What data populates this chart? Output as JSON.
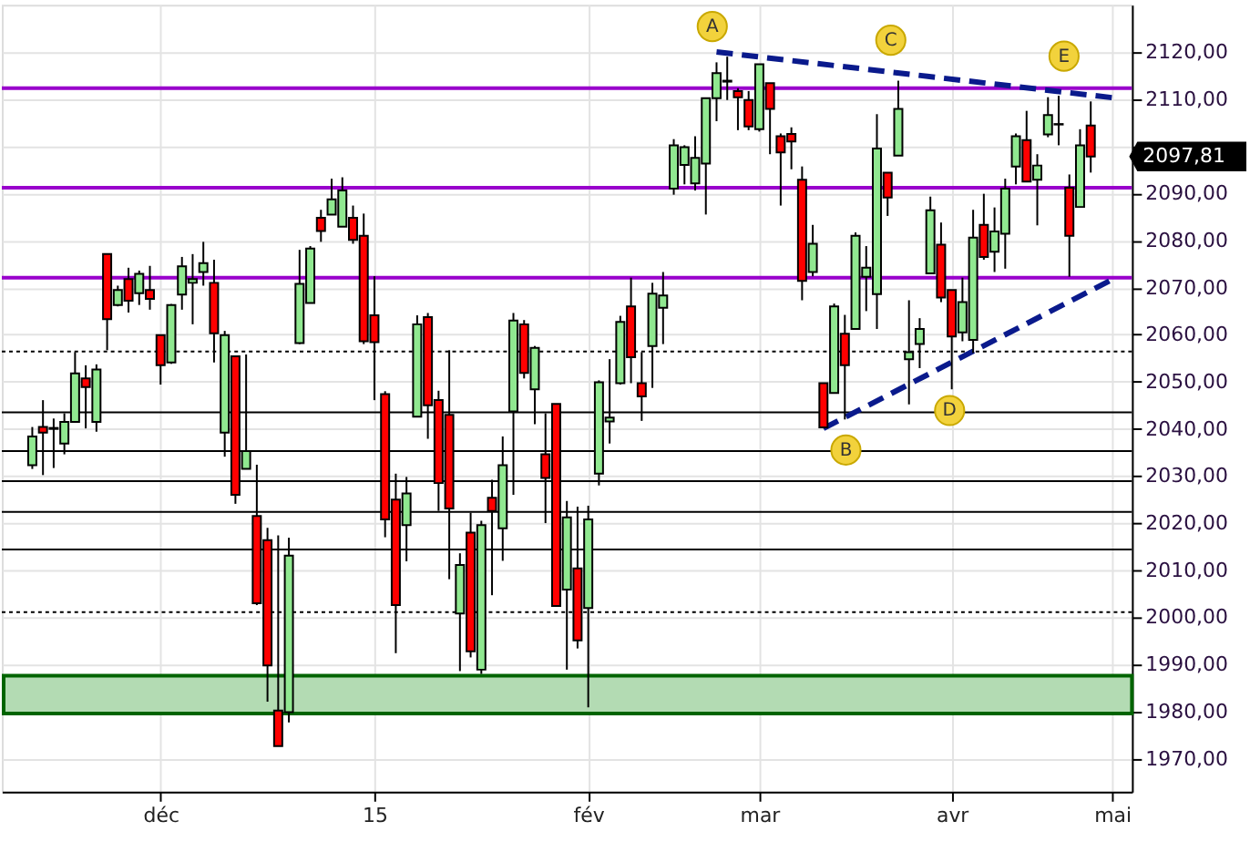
{
  "chart_data": {
    "type": "candlestick",
    "categories": [
      null,
      null,
      null,
      null,
      null,
      null,
      null,
      null,
      null,
      null,
      null,
      null,
      "déc",
      null,
      null,
      null,
      null,
      null,
      null,
      null,
      null,
      null,
      null,
      null,
      null,
      null,
      null,
      null,
      null,
      null,
      null,
      null,
      "15",
      null,
      null,
      null,
      null,
      null,
      null,
      null,
      null,
      null,
      null,
      null,
      null,
      null,
      null,
      null,
      null,
      null,
      null,
      null,
      "fév",
      null,
      null,
      null,
      null,
      null,
      null,
      null,
      null,
      null,
      null,
      null,
      null,
      null,
      null,
      null,
      "mar",
      null,
      null,
      null,
      null,
      null,
      null,
      null,
      null,
      null,
      null,
      null,
      null,
      null,
      null,
      null,
      null,
      null,
      "avr",
      null,
      null,
      null,
      null,
      null,
      null,
      null,
      null,
      null,
      null,
      null,
      null,
      null,
      null,
      "mai"
    ],
    "ohlc": [
      [
        2032.3,
        2040.4,
        2031.5,
        2038.4
      ],
      [
        2040.4,
        2046.1,
        2030.2,
        2039.2
      ],
      [
        2040.2,
        2042.2,
        2031.7,
        2040.0
      ],
      [
        2036.9,
        2043.3,
        2034.6,
        2041.5
      ],
      [
        2041.5,
        2056.3,
        2041.5,
        2051.8
      ],
      [
        2050.7,
        2053.5,
        2040.1,
        2048.9
      ],
      [
        2041.5,
        2053.7,
        2039.4,
        2052.6
      ],
      [
        2077.1,
        2077.1,
        2056.7,
        2063.3
      ],
      [
        2066.3,
        2070.4,
        2066.0,
        2069.5
      ],
      [
        2071.8,
        2074.2,
        2064.7,
        2067.2
      ],
      [
        2068.8,
        2073.6,
        2066.3,
        2072.9
      ],
      [
        2069.5,
        2074.6,
        2065.3,
        2067.6
      ],
      [
        2059.9,
        2059.9,
        2049.4,
        2053.5
      ],
      [
        2054.1,
        2066.5,
        2053.8,
        2066.3
      ],
      [
        2068.5,
        2076.5,
        2065.3,
        2074.5
      ],
      [
        2071.0,
        2077.1,
        2062.2,
        2071.8
      ],
      [
        2073.3,
        2079.7,
        2070.4,
        2075.2
      ],
      [
        2071.0,
        2075.9,
        2054.1,
        2060.3
      ],
      [
        2039.2,
        2060.8,
        2034.1,
        2059.9
      ],
      [
        2055.4,
        2055.4,
        2024.1,
        2026.0
      ],
      [
        2031.5,
        2055.8,
        2031.5,
        2035.3
      ],
      [
        2021.5,
        2032.4,
        2002.6,
        2003.0
      ],
      [
        2016.4,
        2019.0,
        1982.1,
        1989.8
      ],
      [
        1980.2,
        2017.4,
        1972.7,
        1972.7
      ],
      [
        1979.9,
        2016.9,
        1977.7,
        2013.1
      ],
      [
        2058.2,
        2078.0,
        2058.0,
        2070.8
      ],
      [
        2066.7,
        2078.8,
        2066.7,
        2078.3
      ],
      [
        2084.8,
        2086.5,
        2079.7,
        2082.0
      ],
      [
        2085.5,
        2093.1,
        2085.5,
        2088.7
      ],
      [
        2082.9,
        2093.4,
        2082.9,
        2090.6
      ],
      [
        2084.8,
        2087.4,
        2079.3,
        2080.1
      ],
      [
        2081.0,
        2085.7,
        2058.0,
        2058.6
      ],
      [
        2064.1,
        2072.4,
        2046.1,
        2058.4
      ],
      [
        2047.4,
        2048.0,
        2017.0,
        2020.8
      ],
      [
        2025.0,
        2030.5,
        1992.4,
        2002.6
      ],
      [
        2019.6,
        2029.8,
        2011.9,
        2026.3
      ],
      [
        2042.6,
        2064.1,
        2042.6,
        2062.2
      ],
      [
        2063.7,
        2064.6,
        2037.9,
        2045.0
      ],
      [
        2046.1,
        2048.1,
        2022.6,
        2028.5
      ],
      [
        2043.0,
        2056.7,
        2008.1,
        2023.1
      ],
      [
        2000.8,
        2013.6,
        1988.6,
        2011.1
      ],
      [
        2018.0,
        2022.2,
        1991.5,
        1992.8
      ],
      [
        1988.9,
        2020.5,
        1988.0,
        2019.6
      ],
      [
        2025.4,
        2029.2,
        2004.7,
        2022.6
      ],
      [
        2018.9,
        2038.4,
        2012.0,
        2032.3
      ],
      [
        2043.7,
        2064.6,
        2026.0,
        2063.0
      ],
      [
        2062.2,
        2063.1,
        2050.7,
        2051.9
      ],
      [
        2048.4,
        2057.6,
        2041.0,
        2057.2
      ],
      [
        2034.6,
        2043.3,
        2020.0,
        2029.6
      ],
      [
        2045.3,
        2045.3,
        2002.4,
        2002.4
      ],
      [
        2005.9,
        2024.7,
        1988.9,
        2021.2
      ],
      [
        2010.4,
        2023.5,
        1993.4,
        1995.1
      ],
      [
        2002.0,
        2023.7,
        1980.9,
        2020.8
      ],
      [
        2030.5,
        2050.3,
        2028.0,
        2049.9
      ],
      [
        2041.6,
        2054.8,
        2036.9,
        2042.4
      ],
      [
        2049.7,
        2064.0,
        2049.4,
        2062.7
      ],
      [
        2066.0,
        2072.1,
        2049.7,
        2055.2
      ],
      [
        2049.7,
        2056.3,
        2041.7,
        2046.9
      ],
      [
        2057.6,
        2071.0,
        2048.7,
        2068.7
      ],
      [
        2065.7,
        2073.3,
        2058.0,
        2068.3
      ],
      [
        2091.0,
        2101.5,
        2089.7,
        2100.2
      ],
      [
        2096.0,
        2100.2,
        2091.9,
        2099.8
      ],
      [
        2092.1,
        2102.1,
        2090.6,
        2097.5
      ],
      [
        2096.3,
        2110.2,
        2085.5,
        2110.2
      ],
      [
        2110.2,
        2117.8,
        2105.3,
        2115.5
      ],
      [
        2113.9,
        2119.0,
        2109.8,
        2113.7
      ],
      [
        2111.7,
        2112.3,
        2103.4,
        2110.4
      ],
      [
        2109.8,
        2111.7,
        2103.4,
        2104.2
      ],
      [
        2103.6,
        2117.4,
        2103.1,
        2117.4
      ],
      [
        2113.4,
        2113.4,
        2098.3,
        2107.9
      ],
      [
        2102.1,
        2102.7,
        2087.4,
        2098.7
      ],
      [
        2102.6,
        2104.0,
        2095.1,
        2101.0
      ],
      [
        2092.9,
        2095.7,
        2067.3,
        2071.4
      ],
      [
        2073.3,
        2083.3,
        2072.4,
        2079.3
      ],
      [
        2049.7,
        2049.7,
        2040.1,
        2040.3
      ],
      [
        2047.6,
        2066.6,
        2047.6,
        2066.0
      ],
      [
        2060.2,
        2064.2,
        2042.0,
        2053.5
      ],
      [
        2061.2,
        2081.7,
        2061.2,
        2081.0
      ],
      [
        2072.3,
        2078.8,
        2065.0,
        2074.2
      ],
      [
        2068.6,
        2106.8,
        2061.2,
        2099.5
      ],
      [
        2094.4,
        2094.4,
        2085.2,
        2089.1
      ],
      [
        2098.0,
        2113.9,
        2098.0,
        2107.9
      ],
      [
        2054.8,
        2067.3,
        2045.2,
        2056.3
      ],
      [
        2058.0,
        2063.5,
        2052.9,
        2061.2
      ],
      [
        2073.0,
        2089.3,
        2073.0,
        2086.4
      ],
      [
        2079.1,
        2083.8,
        2066.9,
        2067.9
      ],
      [
        2069.5,
        2069.5,
        2048.4,
        2059.6
      ],
      [
        2060.5,
        2072.1,
        2058.6,
        2066.9
      ],
      [
        2058.9,
        2086.5,
        2056.1,
        2080.6
      ],
      [
        2083.3,
        2089.9,
        2075.9,
        2076.5
      ],
      [
        2077.6,
        2087.0,
        2073.3,
        2081.9
      ],
      [
        2081.4,
        2093.1,
        2074.0,
        2091.0
      ],
      [
        2095.7,
        2102.7,
        2091.9,
        2102.1
      ],
      [
        2101.3,
        2107.5,
        2092.5,
        2092.5
      ],
      [
        2092.9,
        2098.3,
        2083.2,
        2095.9
      ],
      [
        2102.5,
        2110.4,
        2101.9,
        2106.6
      ],
      [
        2104.7,
        2110.7,
        2100.2,
        2104.6
      ],
      [
        2091.2,
        2094.0,
        2072.3,
        2081.0
      ],
      [
        2087.1,
        2103.6,
        2087.1,
        2100.2
      ],
      [
        2104.4,
        2109.5,
        2094.4,
        2097.81
      ],
      null,
      null
    ],
    "series": [
      {
        "type": "line",
        "color": "#0a1a8c",
        "line_style": "dashed",
        "values": [
          null,
          null,
          null,
          null,
          null,
          null,
          null,
          null,
          null,
          null,
          null,
          null,
          null,
          null,
          null,
          null,
          null,
          null,
          null,
          null,
          null,
          null,
          null,
          null,
          null,
          null,
          null,
          null,
          null,
          null,
          null,
          null,
          null,
          null,
          null,
          null,
          null,
          null,
          null,
          null,
          null,
          null,
          null,
          null,
          null,
          null,
          null,
          null,
          null,
          null,
          null,
          null,
          null,
          null,
          null,
          null,
          null,
          null,
          null,
          null,
          null,
          null,
          null,
          null,
          2120,
          null,
          null,
          null,
          null,
          null,
          null,
          null,
          null,
          null,
          null,
          null,
          null,
          null,
          null,
          null,
          null,
          null,
          null,
          null,
          null,
          null,
          null,
          null,
          null,
          null,
          null,
          null,
          null,
          null,
          null,
          null,
          null,
          null,
          null,
          null,
          null,
          2110.3
        ]
      },
      {
        "type": "line",
        "color": "#0a1a8c",
        "line_style": "dashed",
        "values": [
          null,
          null,
          null,
          null,
          null,
          null,
          null,
          null,
          null,
          null,
          null,
          null,
          null,
          null,
          null,
          null,
          null,
          null,
          null,
          null,
          null,
          null,
          null,
          null,
          null,
          null,
          null,
          null,
          null,
          null,
          null,
          null,
          null,
          null,
          null,
          null,
          null,
          null,
          null,
          null,
          null,
          null,
          null,
          null,
          null,
          null,
          null,
          null,
          null,
          null,
          null,
          null,
          null,
          null,
          null,
          null,
          null,
          null,
          null,
          null,
          null,
          null,
          null,
          null,
          null,
          null,
          null,
          null,
          null,
          null,
          null,
          null,
          null,
          null,
          2040.1,
          null,
          null,
          null,
          null,
          null,
          null,
          null,
          null,
          null,
          null,
          null,
          null,
          null,
          null,
          null,
          null,
          null,
          null,
          null,
          null,
          null,
          null,
          null,
          null,
          null,
          null,
          2071.7
        ]
      }
    ],
    "ylim": [
      1963,
      2130
    ],
    "yticks": [
      {
        "value": 1970,
        "label": "1970,00"
      },
      {
        "value": 1980,
        "label": "1980,00"
      },
      {
        "value": 1990,
        "label": "1990,00"
      },
      {
        "value": 2000,
        "label": "2000,00"
      },
      {
        "value": 2010,
        "label": "2010,00"
      },
      {
        "value": 2020,
        "label": "2020,00"
      },
      {
        "value": 2030,
        "label": "2030,00"
      },
      {
        "value": 2040,
        "label": "2040,00"
      },
      {
        "value": 2050,
        "label": "2050,00"
      },
      {
        "value": 2060,
        "label": "2060,00"
      },
      {
        "value": 2070,
        "label": "2070,00"
      },
      {
        "value": 2080,
        "label": "2080,00"
      },
      {
        "value": 2090,
        "label": "2090,00"
      },
      {
        "value": 2100,
        "label": null
      },
      {
        "value": 2110,
        "label": "2110,00"
      },
      {
        "value": 2120,
        "label": "2120,00"
      }
    ],
    "ref_lines": [
      {
        "axis": "y",
        "value": 2112.3,
        "color": "#9900cc",
        "line_style": "solid"
      },
      {
        "axis": "y",
        "value": 2091.2,
        "color": "#9900cc",
        "line_style": "solid"
      },
      {
        "axis": "y",
        "value": 2072.1,
        "color": "#9900cc",
        "line_style": "solid"
      },
      {
        "axis": "y",
        "value": 2056.4,
        "color": "#000000",
        "line_style": "dotted"
      },
      {
        "axis": "y",
        "value": 2043.5,
        "color": "#000000",
        "line_style": "solid"
      },
      {
        "axis": "y",
        "value": 2035.3,
        "color": "#000000",
        "line_style": "solid"
      },
      {
        "axis": "y",
        "value": 2028.9,
        "color": "#000000",
        "line_style": "solid"
      },
      {
        "axis": "y",
        "value": 2022.4,
        "color": "#000000",
        "line_style": "solid"
      },
      {
        "axis": "y",
        "value": 2014.4,
        "color": "#000000",
        "line_style": "solid"
      },
      {
        "axis": "y",
        "value": 2001.1,
        "color": "#000000",
        "line_style": "dotted"
      }
    ],
    "bands": [
      {
        "axis": "y",
        "from": 1979.6,
        "to": 1987.6,
        "color": "#b3dbb3"
      }
    ],
    "annotations": [
      {
        "text": "A",
        "y": 2125.4
      },
      {
        "text": "B",
        "y": 2035.5
      },
      {
        "text": "C",
        "y": 2122.5
      },
      {
        "text": "D",
        "y": 2043.9
      },
      {
        "text": "E",
        "y": 2119.1
      },
      "2097,81"
    ],
    "grid": true
  }
}
